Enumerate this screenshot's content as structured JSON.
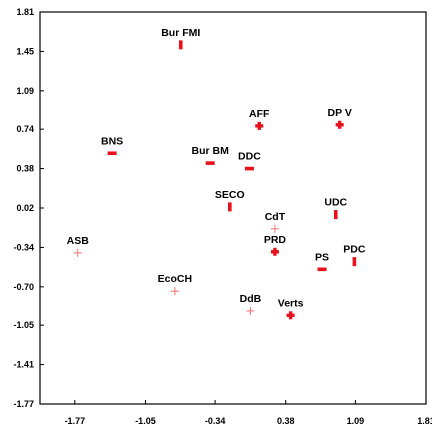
{
  "chart_data": {
    "type": "scatter",
    "title": "",
    "xlabel": "",
    "ylabel": "",
    "xlim": [
      -2.125,
      1.81
    ],
    "ylim": [
      -1.77,
      1.81
    ],
    "x_ticks": [
      "-1.77",
      "-1.05",
      "-0.34",
      "0.38",
      "1.09",
      "1.81"
    ],
    "x_tick_values": [
      -1.77,
      -1.05,
      -0.34,
      0.38,
      1.09,
      1.81
    ],
    "y_ticks": [
      "1.81",
      "1.45",
      "1.09",
      "0.74",
      "0.38",
      "0.02",
      "-0.34",
      "-0.70",
      "-1.05",
      "-1.41",
      "-1.77"
    ],
    "y_tick_values": [
      1.81,
      1.45,
      1.09,
      0.74,
      0.38,
      0.02,
      -0.34,
      -0.7,
      -1.05,
      -1.41,
      -1.77
    ],
    "grid": false,
    "points": [
      {
        "label": "Bur FMI",
        "x": -0.69,
        "y": 1.51,
        "marker": "dash-v"
      },
      {
        "label": "AFF",
        "x": 0.11,
        "y": 0.77,
        "marker": "plus-bold"
      },
      {
        "label": "DP V",
        "x": 0.93,
        "y": 0.78,
        "marker": "plus-bold"
      },
      {
        "label": "BNS",
        "x": -1.39,
        "y": 0.52,
        "marker": "dash-h"
      },
      {
        "label": "Bur BM",
        "x": -0.39,
        "y": 0.43,
        "marker": "dash-h"
      },
      {
        "label": "DDC",
        "x": 0.01,
        "y": 0.38,
        "marker": "dash-h"
      },
      {
        "label": "SECO",
        "x": -0.19,
        "y": 0.03,
        "marker": "dash-v"
      },
      {
        "label": "CdT",
        "x": 0.27,
        "y": -0.17,
        "marker": "plus-thin"
      },
      {
        "label": "UDC",
        "x": 0.89,
        "y": -0.04,
        "marker": "dash-v"
      },
      {
        "label": "PRD",
        "x": 0.27,
        "y": -0.38,
        "marker": "plus-bold"
      },
      {
        "label": "PS",
        "x": 0.75,
        "y": -0.54,
        "marker": "dash-h"
      },
      {
        "label": "PDC",
        "x": 1.08,
        "y": -0.47,
        "marker": "dash-v"
      },
      {
        "label": "ASB",
        "x": -1.74,
        "y": -0.39,
        "marker": "plus-thin"
      },
      {
        "label": "EcoCH",
        "x": -0.75,
        "y": -0.74,
        "marker": "plus-thin"
      },
      {
        "label": "DdB",
        "x": 0.02,
        "y": -0.92,
        "marker": "plus-thin"
      },
      {
        "label": "Verts",
        "x": 0.43,
        "y": -0.96,
        "marker": "plus-bold"
      }
    ]
  },
  "colors": {
    "marker": "#e8101a",
    "marker_light": "#f07070",
    "axis": "#000000",
    "label": "#000000"
  }
}
